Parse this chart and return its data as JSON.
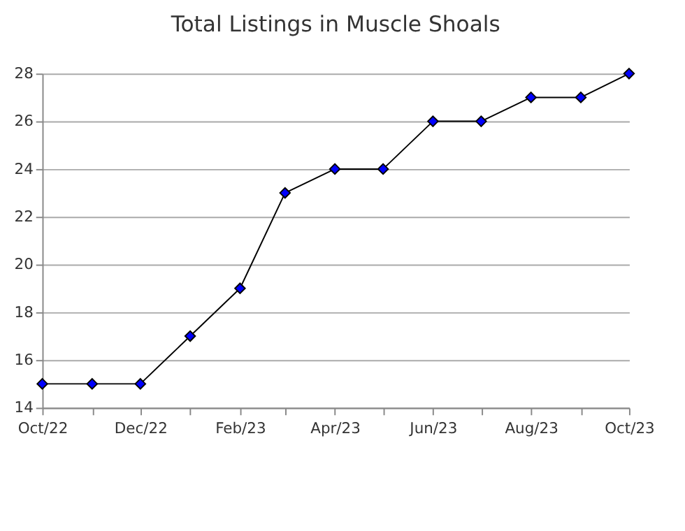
{
  "chart_data": {
    "type": "line",
    "title": "Total Listings in Muscle Shoals",
    "x": [
      "2022-10",
      "2022-11",
      "2022-12",
      "2023-01",
      "2023-02",
      "2023-03",
      "2023-04",
      "2023-05",
      "2023-06",
      "2023-07",
      "2023-08",
      "2023-09",
      "2023-10"
    ],
    "series": [
      {
        "color": "#000000",
        "values": [
          15,
          15,
          15,
          17,
          19,
          23,
          24,
          24,
          26,
          26,
          27,
          27,
          28
        ]
      }
    ],
    "xlim": [
      "2022-10",
      "2023-10"
    ],
    "xticks": [
      {
        "value": "2022-10",
        "label": "Oct/22"
      },
      {
        "value": "2022-11",
        "label": null
      },
      {
        "value": "2022-12",
        "label": "Dec/22"
      },
      {
        "value": "2023-01",
        "label": null
      },
      {
        "value": "2023-02",
        "label": "Feb/23"
      },
      {
        "value": "2023-03",
        "label": null
      },
      {
        "value": "2023-04",
        "label": "Apr/23"
      },
      {
        "value": "2023-05",
        "label": null
      },
      {
        "value": "2023-06",
        "label": "Jun/23"
      },
      {
        "value": "2023-07",
        "label": null
      },
      {
        "value": "2023-08",
        "label": "Aug/23"
      },
      {
        "value": "2023-09",
        "label": null
      },
      {
        "value": "2023-10",
        "label": "Oct/23"
      }
    ],
    "ylim": [
      14,
      28
    ],
    "yticks": [
      14,
      16,
      18,
      20,
      22,
      24,
      26,
      28
    ],
    "grid": "y",
    "marker": "diamond",
    "line_style": "solid"
  }
}
